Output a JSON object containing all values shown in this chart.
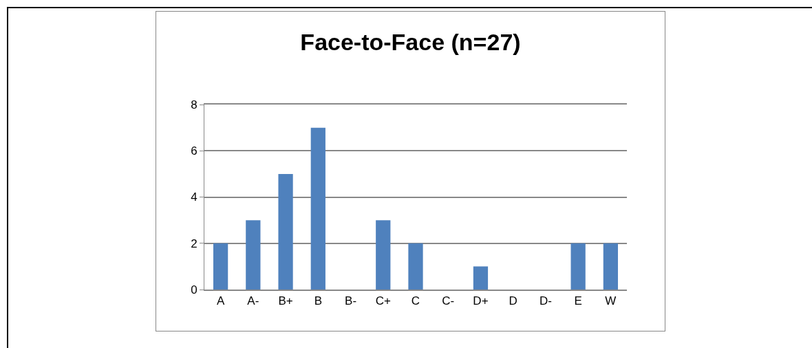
{
  "chart_data": {
    "type": "bar",
    "title": "Face-to-Face (n=27)",
    "categories": [
      "A",
      "A-",
      "B+",
      "B",
      "B-",
      "C+",
      "C",
      "C-",
      "D+",
      "D",
      "D-",
      "E",
      "W"
    ],
    "values": [
      2,
      3,
      5,
      7,
      0,
      3,
      2,
      0,
      1,
      0,
      0,
      2,
      2
    ],
    "color": "#4f81bd",
    "ylim": [
      0,
      8
    ],
    "yticks": [
      0,
      2,
      4,
      6,
      8
    ],
    "grid": true
  }
}
